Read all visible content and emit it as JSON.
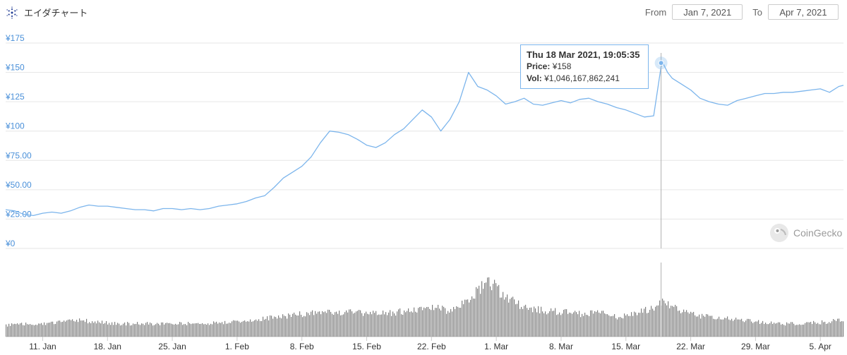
{
  "title": "エイダチャート",
  "range": {
    "from_label": "From",
    "from_value": "Jan 7, 2021",
    "to_label": "To",
    "to_value": "Apr 7, 2021"
  },
  "tooltip": {
    "date": "Thu 18 Mar 2021, 19:05:35",
    "price_label": "Price:",
    "price_value": "¥158",
    "vol_label": "Vol:",
    "vol_value": "¥1,046,167,862,241"
  },
  "watermark": "CoinGecko",
  "colors": {
    "price_line": "#7cb5ec",
    "volume": "#808080",
    "y_ticks": "#4a90d9",
    "grid": "#e6e6e6"
  },
  "chart_data": {
    "type": "line",
    "title": "エイダチャート",
    "y_tick_labels": [
      "¥175",
      "¥150",
      "¥125",
      "¥100",
      "¥75.00",
      "¥50.00",
      "¥25.00",
      "¥0"
    ],
    "y_tick_values": [
      175,
      150,
      125,
      100,
      75,
      50,
      25,
      0
    ],
    "ylim": [
      0,
      175
    ],
    "x_tick_labels": [
      "11. Jan",
      "18. Jan",
      "25. Jan",
      "1. Feb",
      "8. Feb",
      "15. Feb",
      "22. Feb",
      "1. Mar",
      "8. Mar",
      "15. Mar",
      "22. Mar",
      "29. Mar",
      "5. Apr"
    ],
    "x_tick_days": [
      4,
      11,
      18,
      25,
      32,
      39,
      46,
      53,
      60,
      67,
      74,
      81,
      88
    ],
    "xlim_days": [
      0,
      90.5
    ],
    "grid": true,
    "series": [
      {
        "type": "line",
        "x_days": [
          0,
          1,
          2,
          3,
          4,
          5,
          6,
          7,
          8,
          9,
          10,
          11,
          12,
          13,
          14,
          15,
          16,
          17,
          18,
          19,
          20,
          21,
          22,
          23,
          24,
          25,
          26,
          27,
          28,
          29,
          30,
          31,
          32,
          33,
          34,
          35,
          36,
          37,
          38,
          39,
          40,
          41,
          42,
          43,
          44,
          45,
          46,
          47,
          48,
          49,
          50,
          51,
          52,
          53,
          54,
          55,
          56,
          57,
          58,
          59,
          60,
          61,
          62,
          63,
          64,
          65,
          66,
          67,
          68,
          69,
          70,
          70.8,
          71,
          71.5,
          72,
          73,
          74,
          75,
          76,
          77,
          78,
          79,
          80,
          81,
          82,
          83,
          84,
          85,
          86,
          87,
          88,
          89,
          90,
          90.5
        ],
        "values": [
          33,
          32,
          29,
          28,
          30,
          31,
          30,
          32,
          35,
          37,
          36,
          36,
          35,
          34,
          33,
          33,
          32,
          34,
          34,
          33,
          34,
          33,
          34,
          36,
          37,
          38,
          40,
          43,
          45,
          52,
          60,
          65,
          70,
          78,
          90,
          100,
          99,
          97,
          93,
          88,
          86,
          90,
          97,
          102,
          110,
          118,
          112,
          100,
          110,
          125,
          150,
          138,
          135,
          130,
          123,
          125,
          128,
          123,
          122,
          124,
          126,
          124,
          127,
          128,
          125,
          123,
          120,
          118,
          115,
          112,
          113,
          155,
          158,
          150,
          145,
          140,
          135,
          128,
          125,
          123,
          122,
          126,
          128,
          130,
          132,
          132,
          133,
          133,
          134,
          135,
          136,
          133,
          138,
          139
        ],
        "marker": {
          "x_day": 70.8,
          "value": 158
        }
      },
      {
        "type": "bar",
        "name": "Vol",
        "x_days": [
          0,
          4,
          8,
          12,
          16,
          20,
          24,
          28,
          32,
          36,
          40,
          44,
          46,
          48,
          50,
          52,
          54,
          56,
          58,
          60,
          62,
          64,
          66,
          68,
          70,
          71,
          72,
          74,
          76,
          78,
          80,
          82,
          84,
          86,
          88,
          90
        ],
        "values": [
          0.18,
          0.2,
          0.25,
          0.2,
          0.2,
          0.2,
          0.22,
          0.28,
          0.35,
          0.38,
          0.35,
          0.4,
          0.45,
          0.4,
          0.55,
          0.9,
          0.6,
          0.45,
          0.4,
          0.38,
          0.35,
          0.38,
          0.3,
          0.35,
          0.45,
          0.55,
          0.45,
          0.35,
          0.3,
          0.28,
          0.25,
          0.22,
          0.2,
          0.2,
          0.22,
          0.25
        ]
      }
    ],
    "crosshair_x_day": 70.8
  }
}
